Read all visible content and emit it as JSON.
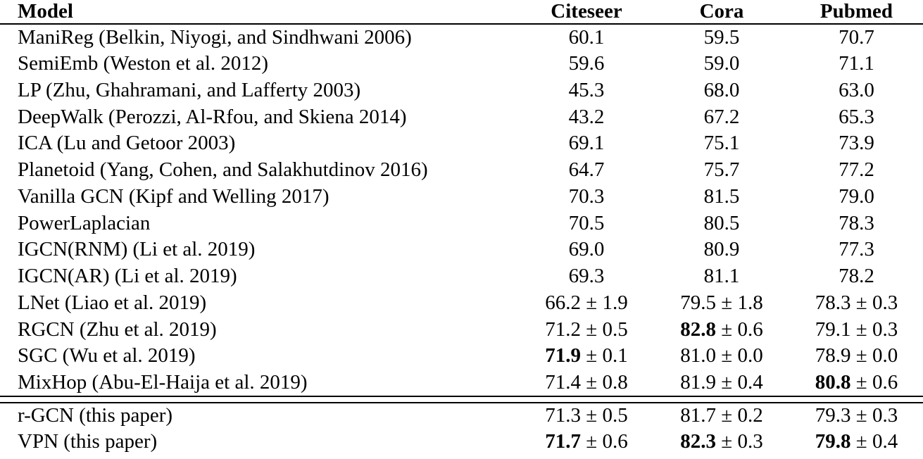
{
  "page": {
    "background_color": "#ffffff",
    "text_color": "#000000"
  },
  "table": {
    "header": {
      "model": "Model",
      "citeseer": "Citeseer",
      "cora": "Cora",
      "pubmed": "Pubmed"
    },
    "rows": [
      {
        "model": "ManiReg (Belkin, Niyogi, and Sindhwani 2006)",
        "citeseer": {
          "v": "60.1",
          "pm": "",
          "bold": false
        },
        "cora": {
          "v": "59.5",
          "pm": "",
          "bold": false
        },
        "pubmed": {
          "v": "70.7",
          "pm": "",
          "bold": false
        }
      },
      {
        "model": "SemiEmb (Weston et al. 2012)",
        "citeseer": {
          "v": "59.6",
          "pm": "",
          "bold": false
        },
        "cora": {
          "v": "59.0",
          "pm": "",
          "bold": false
        },
        "pubmed": {
          "v": "71.1",
          "pm": "",
          "bold": false
        }
      },
      {
        "model": "LP (Zhu, Ghahramani, and Lafferty 2003)",
        "citeseer": {
          "v": "45.3",
          "pm": "",
          "bold": false
        },
        "cora": {
          "v": "68.0",
          "pm": "",
          "bold": false
        },
        "pubmed": {
          "v": "63.0",
          "pm": "",
          "bold": false
        }
      },
      {
        "model": "DeepWalk (Perozzi, Al-Rfou, and Skiena 2014)",
        "citeseer": {
          "v": "43.2",
          "pm": "",
          "bold": false
        },
        "cora": {
          "v": "67.2",
          "pm": "",
          "bold": false
        },
        "pubmed": {
          "v": "65.3",
          "pm": "",
          "bold": false
        }
      },
      {
        "model": "ICA (Lu and Getoor 2003)",
        "citeseer": {
          "v": "69.1",
          "pm": "",
          "bold": false
        },
        "cora": {
          "v": "75.1",
          "pm": "",
          "bold": false
        },
        "pubmed": {
          "v": "73.9",
          "pm": "",
          "bold": false
        }
      },
      {
        "model": "Planetoid (Yang, Cohen, and Salakhutdinov 2016)",
        "citeseer": {
          "v": "64.7",
          "pm": "",
          "bold": false
        },
        "cora": {
          "v": "75.7",
          "pm": "",
          "bold": false
        },
        "pubmed": {
          "v": "77.2",
          "pm": "",
          "bold": false
        }
      },
      {
        "model": "Vanilla GCN (Kipf and Welling 2017)",
        "citeseer": {
          "v": "70.3",
          "pm": "",
          "bold": false
        },
        "cora": {
          "v": "81.5",
          "pm": "",
          "bold": false
        },
        "pubmed": {
          "v": "79.0",
          "pm": "",
          "bold": false
        }
      },
      {
        "model": "PowerLaplacian",
        "citeseer": {
          "v": "70.5",
          "pm": "",
          "bold": false
        },
        "cora": {
          "v": "80.5",
          "pm": "",
          "bold": false
        },
        "pubmed": {
          "v": "78.3",
          "pm": "",
          "bold": false
        }
      },
      {
        "model": "IGCN(RNM) (Li et al. 2019)",
        "citeseer": {
          "v": "69.0",
          "pm": "",
          "bold": false
        },
        "cora": {
          "v": "80.9",
          "pm": "",
          "bold": false
        },
        "pubmed": {
          "v": "77.3",
          "pm": "",
          "bold": false
        }
      },
      {
        "model": "IGCN(AR) (Li et al. 2019)",
        "citeseer": {
          "v": "69.3",
          "pm": "",
          "bold": false
        },
        "cora": {
          "v": "81.1",
          "pm": "",
          "bold": false
        },
        "pubmed": {
          "v": "78.2",
          "pm": "",
          "bold": false
        }
      },
      {
        "model": "LNet (Liao et al. 2019)",
        "citeseer": {
          "v": "66.2",
          "pm": " ± 1.9",
          "bold": false
        },
        "cora": {
          "v": "79.5",
          "pm": " ± 1.8",
          "bold": false
        },
        "pubmed": {
          "v": "78.3",
          "pm": " ± 0.3",
          "bold": false
        }
      },
      {
        "model": "RGCN (Zhu et al. 2019)",
        "citeseer": {
          "v": "71.2",
          "pm": " ± 0.5",
          "bold": false
        },
        "cora": {
          "v": "82.8",
          "pm": " ± 0.6",
          "bold": true
        },
        "pubmed": {
          "v": "79.1",
          "pm": " ± 0.3",
          "bold": false
        }
      },
      {
        "model": "SGC (Wu et al. 2019)",
        "citeseer": {
          "v": "71.9",
          "pm": " ± 0.1",
          "bold": true
        },
        "cora": {
          "v": "81.0",
          "pm": " ± 0.0",
          "bold": false
        },
        "pubmed": {
          "v": "78.9",
          "pm": " ± 0.0",
          "bold": false
        }
      },
      {
        "model": "MixHop (Abu-El-Haija et al. 2019)",
        "citeseer": {
          "v": "71.4",
          "pm": " ± 0.8",
          "bold": false
        },
        "cora": {
          "v": "81.9",
          "pm": " ± 0.4",
          "bold": false
        },
        "pubmed": {
          "v": "80.8",
          "pm": " ± 0.6",
          "bold": true
        }
      }
    ],
    "paper_rows": [
      {
        "model": "r-GCN (this paper)",
        "citeseer": {
          "v": "71.3",
          "pm": " ± 0.5",
          "bold": false
        },
        "cora": {
          "v": "81.7",
          "pm": " ± 0.2",
          "bold": false
        },
        "pubmed": {
          "v": "79.3",
          "pm": " ± 0.3",
          "bold": false
        }
      },
      {
        "model": "VPN (this paper)",
        "citeseer": {
          "v": "71.7",
          "pm": " ± 0.6",
          "bold": true
        },
        "cora": {
          "v": "82.3",
          "pm": " ± 0.3",
          "bold": true
        },
        "pubmed": {
          "v": "79.8",
          "pm": " ± 0.4",
          "bold": true
        }
      }
    ]
  }
}
